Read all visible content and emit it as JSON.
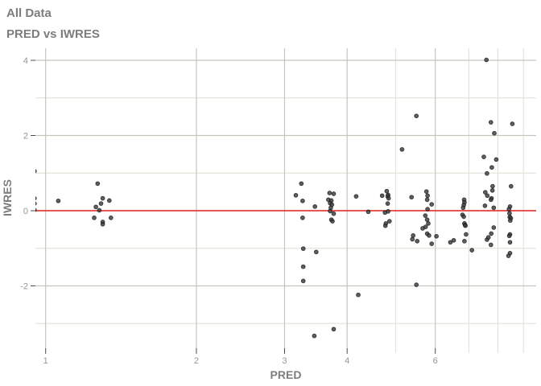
{
  "header": {
    "title": "All Data",
    "subtitle": "PRED vs IWRES"
  },
  "colors": {
    "title_text": "#7d7d7d",
    "tick_text": "#969696",
    "grid_major": "#c6c6bd",
    "grid_minor": "#e4e4dc",
    "point_fill": "#3a3a3a",
    "point_stroke": "#141414",
    "reference_line": "#e62320",
    "background": "#ffffff"
  },
  "chart_data": {
    "type": "scatter",
    "title": "All Data",
    "subtitle": "PRED vs IWRES",
    "xlabel": "PRED",
    "ylabel": "IWRES",
    "x_scale": "log10",
    "xlim": [
      0.95,
      9.54
    ],
    "ylim": [
      -3.66,
      4.32
    ],
    "x_ticks_major": [
      1,
      2,
      3,
      4,
      6
    ],
    "x_tick_labels": [
      "1",
      "2",
      "3",
      "4",
      "6"
    ],
    "x_ticks_minor": [
      5,
      7,
      8,
      9
    ],
    "y_ticks_major": [
      -2,
      0,
      2,
      4
    ],
    "y_tick_labels": [
      "-2",
      "0",
      "2",
      "4"
    ],
    "y_ticks_minor": [
      -3,
      -1,
      1,
      3
    ],
    "grid": true,
    "legend": "none",
    "reference_line": {
      "y": 0,
      "color": "#e62320"
    },
    "points": [
      [
        0.95,
        1.05
      ],
      [
        0.95,
        0.33
      ],
      [
        0.95,
        0.19
      ],
      [
        0.95,
        0.02
      ],
      [
        1.06,
        0.26
      ],
      [
        1.27,
        0.72
      ],
      [
        1.3,
        0.33
      ],
      [
        1.34,
        0.27
      ],
      [
        1.29,
        0.19
      ],
      [
        1.26,
        0.1
      ],
      [
        1.28,
        0.01
      ],
      [
        1.25,
        -0.19
      ],
      [
        1.35,
        -0.19
      ],
      [
        1.3,
        -0.3
      ],
      [
        1.3,
        -0.36
      ],
      [
        3.24,
        0.72
      ],
      [
        3.16,
        0.41
      ],
      [
        3.26,
        0.26
      ],
      [
        3.45,
        0.11
      ],
      [
        3.26,
        -0.19
      ],
      [
        3.27,
        -1.01
      ],
      [
        3.47,
        -1.1
      ],
      [
        3.27,
        -1.49
      ],
      [
        3.27,
        -1.87
      ],
      [
        3.69,
        0.47
      ],
      [
        3.76,
        0.45
      ],
      [
        3.67,
        0.29
      ],
      [
        3.72,
        0.27
      ],
      [
        3.7,
        0.2
      ],
      [
        3.73,
        0.16
      ],
      [
        3.71,
        0.08
      ],
      [
        3.7,
        -0.01
      ],
      [
        3.76,
        -0.08
      ],
      [
        3.72,
        -0.24
      ],
      [
        3.74,
        -0.28
      ],
      [
        3.76,
        -3.15
      ],
      [
        3.44,
        -3.33
      ],
      [
        4.17,
        0.38
      ],
      [
        4.41,
        -0.03
      ],
      [
        4.21,
        -2.24
      ],
      [
        4.7,
        0.4
      ],
      [
        4.8,
        0.52
      ],
      [
        4.83,
        0.42
      ],
      [
        4.82,
        0.38
      ],
      [
        4.84,
        0.33
      ],
      [
        4.82,
        0.19
      ],
      [
        4.76,
        -0.05
      ],
      [
        4.83,
        -0.02
      ],
      [
        4.78,
        -0.34
      ],
      [
        4.86,
        -0.28
      ],
      [
        4.77,
        -0.4
      ],
      [
        5.15,
        1.63
      ],
      [
        5.5,
        2.52
      ],
      [
        5.38,
        0.36
      ],
      [
        5.42,
        -0.66
      ],
      [
        5.4,
        -0.76
      ],
      [
        5.52,
        -0.81
      ],
      [
        5.5,
        -1.97
      ],
      [
        5.66,
        -0.47
      ],
      [
        5.76,
        0.51
      ],
      [
        5.79,
        0.4
      ],
      [
        5.78,
        0.29
      ],
      [
        5.9,
        0.17
      ],
      [
        5.79,
        0.04
      ],
      [
        5.73,
        -0.13
      ],
      [
        5.78,
        -0.24
      ],
      [
        5.81,
        -0.34
      ],
      [
        5.74,
        -0.43
      ],
      [
        5.78,
        -0.61
      ],
      [
        5.83,
        -0.66
      ],
      [
        5.9,
        -0.88
      ],
      [
        6.03,
        -0.68
      ],
      [
        6.43,
        -0.84
      ],
      [
        6.53,
        -0.79
      ],
      [
        6.85,
        0.29
      ],
      [
        6.86,
        0.22
      ],
      [
        6.84,
        0.15
      ],
      [
        6.82,
        0.08
      ],
      [
        6.8,
        -0.11
      ],
      [
        6.84,
        -0.16
      ],
      [
        6.86,
        -0.34
      ],
      [
        6.88,
        -0.38
      ],
      [
        6.89,
        -0.4
      ],
      [
        6.91,
        -0.63
      ],
      [
        6.86,
        -0.81
      ],
      [
        7.1,
        -1.05
      ],
      [
        7.59,
        4.01
      ],
      [
        7.75,
        2.35
      ],
      [
        7.87,
        2.06
      ],
      [
        7.5,
        1.43
      ],
      [
        7.94,
        1.36
      ],
      [
        7.78,
        1.15
      ],
      [
        7.61,
        0.99
      ],
      [
        7.8,
        0.54
      ],
      [
        7.55,
        0.49
      ],
      [
        7.81,
        0.65
      ],
      [
        7.62,
        0.4
      ],
      [
        7.77,
        0.33
      ],
      [
        7.75,
        0.29
      ],
      [
        7.54,
        0.13
      ],
      [
        7.85,
        0.08
      ],
      [
        7.85,
        -0.45
      ],
      [
        7.61,
        -0.77
      ],
      [
        7.66,
        -0.71
      ],
      [
        7.76,
        -0.61
      ],
      [
        7.75,
        -0.91
      ],
      [
        8.55,
        2.31
      ],
      [
        8.5,
        0.65
      ],
      [
        8.46,
        0.11
      ],
      [
        8.42,
        0.04
      ],
      [
        8.44,
        -0.07
      ],
      [
        8.45,
        -0.17
      ],
      [
        8.49,
        -0.2
      ],
      [
        8.47,
        -0.26
      ],
      [
        8.46,
        -0.63
      ],
      [
        8.43,
        -0.67
      ],
      [
        8.46,
        -0.84
      ],
      [
        8.46,
        -1.13
      ],
      [
        8.4,
        -1.2
      ]
    ]
  }
}
